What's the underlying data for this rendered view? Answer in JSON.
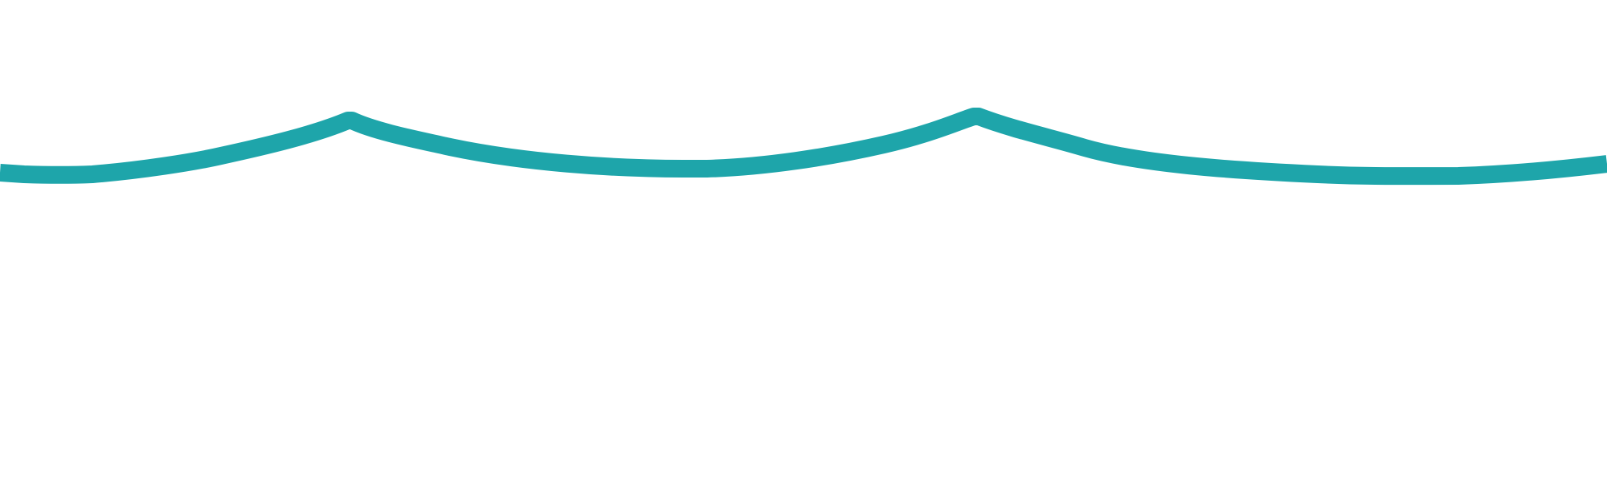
{
  "divider": {
    "stroke_color": "#1ea5aa",
    "background_color": "#ffffff",
    "shape": "wave-divider"
  }
}
